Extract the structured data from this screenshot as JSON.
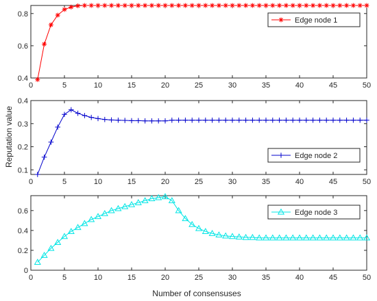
{
  "figure": {
    "xlabel": "Number of consensuses",
    "ylabel": "Reputation value"
  },
  "chart_data": [
    {
      "type": "line",
      "xlim": [
        0,
        50
      ],
      "ylim": [
        0.4,
        0.85
      ],
      "xticks": [
        0,
        5,
        10,
        15,
        20,
        25,
        30,
        35,
        40,
        45,
        50
      ],
      "yticks": [
        0.4,
        0.6,
        0.8
      ],
      "ytick_labels": [
        "0.4",
        "0.6",
        "0.8"
      ],
      "grid": false,
      "legend_position": "top-right",
      "series": [
        {
          "name": "Edge node 1",
          "color": "#ff0000",
          "marker": "asterisk",
          "x": [
            1,
            2,
            3,
            4,
            5,
            6,
            7,
            8,
            9,
            10,
            11,
            12,
            13,
            14,
            15,
            16,
            17,
            18,
            19,
            20,
            21,
            22,
            23,
            24,
            25,
            26,
            27,
            28,
            29,
            30,
            31,
            32,
            33,
            34,
            35,
            36,
            37,
            38,
            39,
            40,
            41,
            42,
            43,
            44,
            45,
            46,
            47,
            48,
            49,
            50
          ],
          "y": [
            0.39,
            0.61,
            0.73,
            0.79,
            0.825,
            0.84,
            0.848,
            0.85,
            0.85,
            0.85,
            0.85,
            0.85,
            0.85,
            0.85,
            0.85,
            0.85,
            0.85,
            0.85,
            0.85,
            0.85,
            0.85,
            0.85,
            0.85,
            0.85,
            0.85,
            0.85,
            0.85,
            0.85,
            0.85,
            0.85,
            0.85,
            0.85,
            0.85,
            0.85,
            0.85,
            0.85,
            0.85,
            0.85,
            0.85,
            0.85,
            0.85,
            0.85,
            0.85,
            0.85,
            0.85,
            0.85,
            0.85,
            0.85,
            0.85,
            0.85
          ]
        }
      ]
    },
    {
      "type": "line",
      "xlim": [
        0,
        50
      ],
      "ylim": [
        0.08,
        0.4
      ],
      "xticks": [
        0,
        5,
        10,
        15,
        20,
        25,
        30,
        35,
        40,
        45,
        50
      ],
      "yticks": [
        0.1,
        0.2,
        0.3,
        0.4
      ],
      "ytick_labels": [
        "0.1",
        "0.2",
        "0.3",
        "0.4"
      ],
      "grid": false,
      "legend_position": "bottom-right",
      "series": [
        {
          "name": "Edge node 2",
          "color": "#0000cc",
          "marker": "plus",
          "x": [
            1,
            2,
            3,
            4,
            5,
            6,
            7,
            8,
            9,
            10,
            11,
            12,
            13,
            14,
            15,
            16,
            17,
            18,
            19,
            20,
            21,
            22,
            23,
            24,
            25,
            26,
            27,
            28,
            29,
            30,
            31,
            32,
            33,
            34,
            35,
            36,
            37,
            38,
            39,
            40,
            41,
            42,
            43,
            44,
            45,
            46,
            47,
            48,
            49,
            50
          ],
          "y": [
            0.08,
            0.155,
            0.22,
            0.285,
            0.34,
            0.36,
            0.345,
            0.335,
            0.327,
            0.322,
            0.318,
            0.316,
            0.315,
            0.314,
            0.313,
            0.313,
            0.312,
            0.312,
            0.312,
            0.312,
            0.315,
            0.315,
            0.315,
            0.315,
            0.315,
            0.315,
            0.315,
            0.315,
            0.315,
            0.315,
            0.315,
            0.315,
            0.315,
            0.315,
            0.315,
            0.315,
            0.315,
            0.315,
            0.315,
            0.315,
            0.315,
            0.315,
            0.315,
            0.315,
            0.315,
            0.315,
            0.315,
            0.315,
            0.315,
            0.315
          ]
        }
      ]
    },
    {
      "type": "line",
      "xlim": [
        0,
        50
      ],
      "ylim": [
        0,
        0.75
      ],
      "xticks": [
        0,
        5,
        10,
        15,
        20,
        25,
        30,
        35,
        40,
        45,
        50
      ],
      "yticks": [
        0,
        0.2,
        0.4,
        0.6
      ],
      "ytick_labels": [
        "0",
        "0.2",
        "0.4",
        "0.6"
      ],
      "grid": false,
      "legend_position": "top-right",
      "series": [
        {
          "name": "Edge node 3",
          "color": "#00e5e5",
          "marker": "triangle",
          "x": [
            1,
            2,
            3,
            4,
            5,
            6,
            7,
            8,
            9,
            10,
            11,
            12,
            13,
            14,
            15,
            16,
            17,
            18,
            19,
            20,
            21,
            22,
            23,
            24,
            25,
            26,
            27,
            28,
            29,
            30,
            31,
            32,
            33,
            34,
            35,
            36,
            37,
            38,
            39,
            40,
            41,
            42,
            43,
            44,
            45,
            46,
            47,
            48,
            49,
            50
          ],
          "y": [
            0.08,
            0.15,
            0.22,
            0.28,
            0.34,
            0.39,
            0.43,
            0.47,
            0.51,
            0.54,
            0.57,
            0.6,
            0.62,
            0.64,
            0.66,
            0.68,
            0.7,
            0.72,
            0.73,
            0.74,
            0.7,
            0.6,
            0.52,
            0.46,
            0.42,
            0.39,
            0.37,
            0.355,
            0.345,
            0.34,
            0.335,
            0.33,
            0.33,
            0.325,
            0.325,
            0.325,
            0.325,
            0.325,
            0.325,
            0.325,
            0.325,
            0.325,
            0.325,
            0.325,
            0.325,
            0.325,
            0.325,
            0.325,
            0.325,
            0.325
          ]
        }
      ]
    }
  ]
}
